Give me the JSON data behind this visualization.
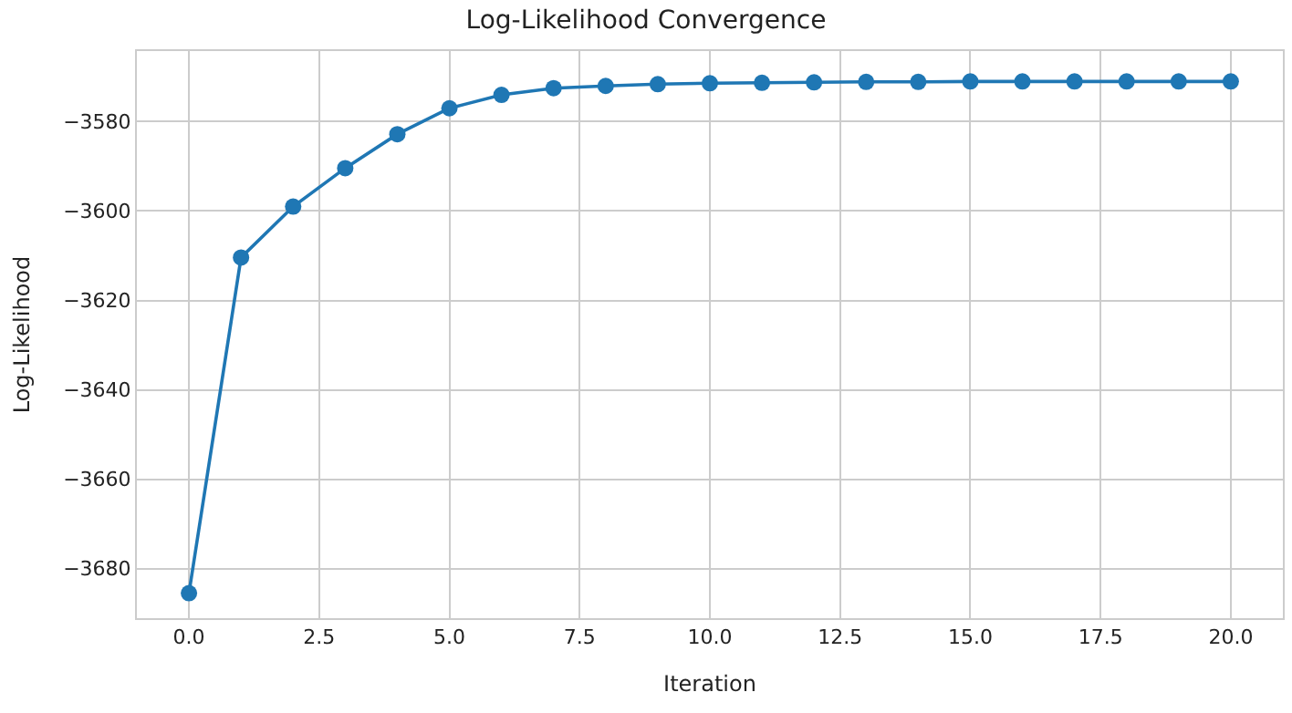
{
  "chart_data": {
    "type": "line",
    "title": "Log-Likelihood Convergence",
    "xlabel": "Iteration",
    "ylabel": "Log-Likelihood",
    "x": [
      0,
      1,
      2,
      3,
      4,
      5,
      6,
      7,
      8,
      9,
      10,
      11,
      12,
      13,
      14,
      15,
      16,
      17,
      18,
      19,
      20
    ],
    "series": [
      {
        "color": "#1f77b4",
        "values": [
          -3685.5,
          -3610.4,
          -3599,
          -3590.4,
          -3582.8,
          -3577,
          -3574,
          -3572.5,
          -3572,
          -3571.6,
          -3571.4,
          -3571.3,
          -3571.2,
          -3571.1,
          -3571.1,
          -3571,
          -3571,
          -3571,
          -3571,
          -3571,
          -3571
        ]
      }
    ],
    "xlim": [
      -1,
      21
    ],
    "xticks": [
      {
        "value": 0,
        "label": "0.0"
      },
      {
        "value": 2.5,
        "label": "2.5"
      },
      {
        "value": 5,
        "label": "5.0"
      },
      {
        "value": 7.5,
        "label": "7.5"
      },
      {
        "value": 10,
        "label": "10.0"
      },
      {
        "value": 12.5,
        "label": "12.5"
      },
      {
        "value": 15,
        "label": "15.0"
      },
      {
        "value": 17.5,
        "label": "17.5"
      },
      {
        "value": 20,
        "label": "20.0"
      }
    ],
    "ylim": [
      -3691.1,
      -3564.2
    ],
    "yticks": [
      {
        "value": -3680,
        "label": "−3680"
      },
      {
        "value": -3660,
        "label": "−3660"
      },
      {
        "value": -3640,
        "label": "−3640"
      },
      {
        "value": -3620,
        "label": "−3620"
      },
      {
        "value": -3600,
        "label": "−3600"
      },
      {
        "value": -3580,
        "label": "−3580"
      }
    ],
    "grid": true,
    "marker": "circle",
    "line_style": "solid"
  }
}
